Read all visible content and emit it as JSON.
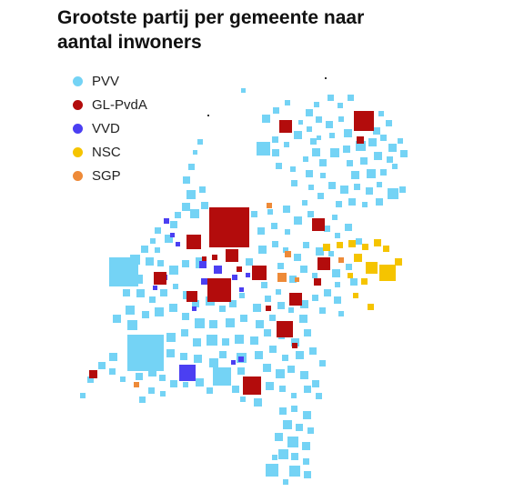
{
  "title": {
    "line1": "Grootste partij per gemeente naar",
    "line2": "aantal inwoners"
  },
  "legend": [
    {
      "key": "pvv",
      "label": "PVV",
      "color": "#74d3f5"
    },
    {
      "key": "glpvda",
      "label": "GL-PvdA",
      "color": "#b30c0c"
    },
    {
      "key": "vvd",
      "label": "VVD",
      "color": "#4b3ff2"
    },
    {
      "key": "nsc",
      "label": "NSC",
      "color": "#f5c400"
    },
    {
      "key": "sgp",
      "label": "SGP",
      "color": "#ee8a38"
    }
  ],
  "map_data": {
    "type": "proportional-square-map",
    "region": "Netherlands",
    "encoding": "one square per municipality, size proportional to population, color = largest party",
    "parties": [
      "PVV",
      "GL-PvdA",
      "VVD",
      "NSC",
      "SGP"
    ]
  }
}
